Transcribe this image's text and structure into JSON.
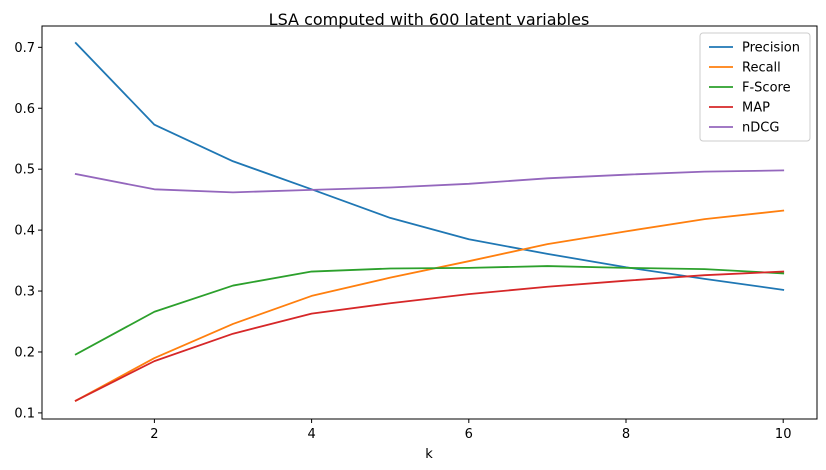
{
  "chart_data": {
    "type": "line",
    "title": "LSA computed with 600 latent variables",
    "xlabel": "k",
    "ylabel": "",
    "xlim": [
      0.57,
      10.43
    ],
    "ylim": [
      0.09,
      0.735
    ],
    "xticks": [
      2,
      4,
      6,
      8,
      10
    ],
    "yticks": [
      0.1,
      0.2,
      0.3,
      0.4,
      0.5,
      0.6,
      0.7
    ],
    "xtick_labels": [
      "2",
      "4",
      "6",
      "8",
      "10"
    ],
    "ytick_labels": [
      "0.1",
      "0.2",
      "0.3",
      "0.4",
      "0.5",
      "0.6",
      "0.7"
    ],
    "grid": false,
    "legend_position": "top-right",
    "x": [
      1,
      2,
      3,
      4,
      5,
      6,
      7,
      8,
      9,
      10
    ],
    "series": [
      {
        "name": "Precision",
        "color": "#1f77b4",
        "values": [
          0.707,
          0.573,
          0.513,
          0.467,
          0.42,
          0.385,
          0.361,
          0.339,
          0.32,
          0.302
        ]
      },
      {
        "name": "Recall",
        "color": "#ff7f0e",
        "values": [
          0.12,
          0.19,
          0.246,
          0.292,
          0.322,
          0.349,
          0.377,
          0.398,
          0.418,
          0.432
        ]
      },
      {
        "name": "F-Score",
        "color": "#2ca02c",
        "values": [
          0.196,
          0.266,
          0.309,
          0.332,
          0.337,
          0.338,
          0.341,
          0.338,
          0.336,
          0.329
        ]
      },
      {
        "name": "MAP",
        "color": "#d62728",
        "values": [
          0.12,
          0.185,
          0.23,
          0.263,
          0.28,
          0.295,
          0.307,
          0.317,
          0.326,
          0.332
        ]
      },
      {
        "name": "nDCG",
        "color": "#9467bd",
        "values": [
          0.492,
          0.467,
          0.462,
          0.466,
          0.47,
          0.476,
          0.485,
          0.491,
          0.496,
          0.498
        ]
      }
    ]
  }
}
